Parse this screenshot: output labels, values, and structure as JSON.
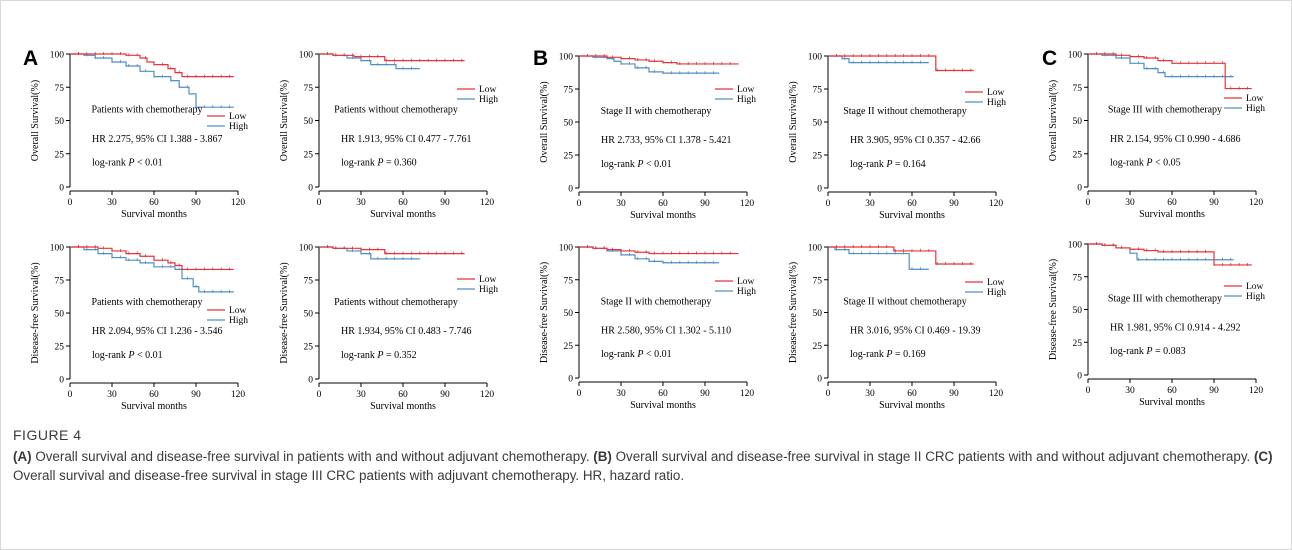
{
  "colors": {
    "low": "#e8333a",
    "high": "#4f8fc6",
    "axis": "#000000"
  },
  "panels": [
    {
      "letter": "A",
      "charts": [
        {
          "y_label": "Overall Survival(%)",
          "x_label": "Survival months",
          "subtitle": "Patients with chemotherapy",
          "hr": "HR 2.275, 95% CI 1.388 - 3.867",
          "p_prefix": "log-rank ",
          "p_text": " < 0.01",
          "xmax": 120,
          "series": [
            {
              "name": "Low",
              "points": [
                [
                  0,
                  100
                ],
                [
                  30,
                  100
                ],
                [
                  40,
                  99
                ],
                [
                  50,
                  97
                ],
                [
                  55,
                  94
                ],
                [
                  60,
                  92
                ],
                [
                  70,
                  89
                ],
                [
                  75,
                  86
                ],
                [
                  80,
                  83
                ],
                [
                  117,
                  83
                ]
              ]
            },
            {
              "name": "High",
              "points": [
                [
                  0,
                  100
                ],
                [
                  10,
                  99
                ],
                [
                  18,
                  97
                ],
                [
                  30,
                  94
                ],
                [
                  40,
                  91
                ],
                [
                  50,
                  87
                ],
                [
                  60,
                  83
                ],
                [
                  72,
                  80
                ],
                [
                  78,
                  75
                ],
                [
                  85,
                  70
                ],
                [
                  90,
                  60
                ],
                [
                  117,
                  60
                ]
              ]
            }
          ]
        },
        {
          "y_label": "Overall Survival(%)",
          "x_label": "Survival months",
          "subtitle": "Patients without chemotherapy",
          "hr": "HR 1.913, 95% CI 0.477 - 7.761",
          "p_prefix": "log-rank ",
          "p_text": " = 0.360",
          "xmax": 120,
          "series": [
            {
              "name": "Low",
              "points": [
                [
                  0,
                  100
                ],
                [
                  10,
                  99
                ],
                [
                  25,
                  98
                ],
                [
                  45,
                  98
                ],
                [
                  47,
                  95
                ],
                [
                  104,
                  95
                ]
              ]
            },
            {
              "name": "High",
              "points": [
                [
                  0,
                  100
                ],
                [
                  10,
                  99
                ],
                [
                  20,
                  97
                ],
                [
                  30,
                  95
                ],
                [
                  37,
                  92
                ],
                [
                  45,
                  92
                ],
                [
                  55,
                  89
                ],
                [
                  72,
                  89
                ]
              ]
            }
          ]
        },
        {
          "y_label": "Disease-free Survival(%)",
          "x_label": "Survival months",
          "subtitle": "Patients with chemotherapy",
          "hr": "HR 2.094, 95% CI 1.236 - 3.546",
          "p_prefix": "log-rank ",
          "p_text": " < 0.01",
          "xmax": 120,
          "series": [
            {
              "name": "Low",
              "points": [
                [
                  0,
                  100
                ],
                [
                  20,
                  99
                ],
                [
                  30,
                  97
                ],
                [
                  40,
                  95
                ],
                [
                  50,
                  93
                ],
                [
                  60,
                  90
                ],
                [
                  70,
                  88
                ],
                [
                  75,
                  86
                ],
                [
                  80,
                  83
                ],
                [
                  117,
                  83
                ]
              ]
            },
            {
              "name": "High",
              "points": [
                [
                  0,
                  100
                ],
                [
                  10,
                  98
                ],
                [
                  20,
                  95
                ],
                [
                  30,
                  92
                ],
                [
                  40,
                  90
                ],
                [
                  50,
                  88
                ],
                [
                  60,
                  85
                ],
                [
                  75,
                  83
                ],
                [
                  80,
                  76
                ],
                [
                  88,
                  70
                ],
                [
                  92,
                  66
                ],
                [
                  117,
                  66
                ]
              ]
            }
          ]
        },
        {
          "y_label": "Disease-free Survival(%)",
          "x_label": "Survival months",
          "subtitle": "Patients without chemotherapy",
          "hr": "HR 1.934, 95% CI 0.483 - 7.746",
          "p_prefix": "log-rank ",
          "p_text": " = 0.352",
          "xmax": 120,
          "series": [
            {
              "name": "Low",
              "points": [
                [
                  0,
                  100
                ],
                [
                  10,
                  99
                ],
                [
                  30,
                  98
                ],
                [
                  45,
                  98
                ],
                [
                  47,
                  95
                ],
                [
                  104,
                  95
                ]
              ]
            },
            {
              "name": "High",
              "points": [
                [
                  0,
                  100
                ],
                [
                  10,
                  99
                ],
                [
                  20,
                  97
                ],
                [
                  30,
                  95
                ],
                [
                  37,
                  91
                ],
                [
                  50,
                  91
                ],
                [
                  72,
                  91
                ]
              ]
            }
          ]
        }
      ]
    },
    {
      "letter": "B",
      "charts": [
        {
          "y_label": "Overall Survival(%)",
          "x_label": "Survival months",
          "subtitle": "Stage II with chemotherapy",
          "hr": "HR 2.733, 95% CI 1.378 - 5.421",
          "p_prefix": "log-rank ",
          "p_text": " < 0.01",
          "xmax": 120,
          "series": [
            {
              "name": "Low",
              "points": [
                [
                  0,
                  100
                ],
                [
                  10,
                  100
                ],
                [
                  20,
                  99
                ],
                [
                  30,
                  98
                ],
                [
                  40,
                  97
                ],
                [
                  50,
                  96
                ],
                [
                  60,
                  95
                ],
                [
                  70,
                  94
                ],
                [
                  114,
                  94
                ]
              ]
            },
            {
              "name": "High",
              "points": [
                [
                  0,
                  100
                ],
                [
                  10,
                  99
                ],
                [
                  20,
                  98
                ],
                [
                  25,
                  96
                ],
                [
                  30,
                  94
                ],
                [
                  40,
                  91
                ],
                [
                  50,
                  88
                ],
                [
                  60,
                  87
                ],
                [
                  100,
                  87
                ]
              ]
            }
          ]
        },
        {
          "y_label": "Overall Survival(%)",
          "x_label": "Survival months",
          "subtitle": "Stage II without chemotherapy",
          "hr": "HR 3.905, 95% CI 0.357 - 42.66",
          "p_prefix": "log-rank ",
          "p_text": " = 0.164",
          "xmax": 120,
          "series": [
            {
              "name": "Low",
              "points": [
                [
                  0,
                  100
                ],
                [
                  75,
                  100
                ],
                [
                  77,
                  89
                ],
                [
                  104,
                  89
                ]
              ]
            },
            {
              "name": "High",
              "points": [
                [
                  0,
                  100
                ],
                [
                  10,
                  98
                ],
                [
                  15,
                  95
                ],
                [
                  72,
                  95
                ]
              ]
            }
          ]
        },
        {
          "y_label": "Disease-free Survival(%)",
          "x_label": "Survival months",
          "subtitle": "Stage II with chemotherapy",
          "hr": "HR 2.580, 95% CI 1.302 - 5.110",
          "p_prefix": "log-rank ",
          "p_text": " < 0.01",
          "xmax": 120,
          "series": [
            {
              "name": "Low",
              "points": [
                [
                  0,
                  100
                ],
                [
                  10,
                  99
                ],
                [
                  20,
                  98
                ],
                [
                  30,
                  97
                ],
                [
                  40,
                  96
                ],
                [
                  50,
                  95
                ],
                [
                  60,
                  95
                ],
                [
                  114,
                  95
                ]
              ]
            },
            {
              "name": "High",
              "points": [
                [
                  0,
                  100
                ],
                [
                  10,
                  99
                ],
                [
                  20,
                  97
                ],
                [
                  30,
                  94
                ],
                [
                  40,
                  91
                ],
                [
                  50,
                  89
                ],
                [
                  60,
                  88
                ],
                [
                  100,
                  88
                ]
              ]
            }
          ]
        },
        {
          "y_label": "Disease-free Survival(%)",
          "x_label": "Survival months",
          "subtitle": "Stage II without chemotherapy",
          "hr": "HR 3.016, 95% CI 0.469 - 19.39",
          "p_prefix": "log-rank ",
          "p_text": " = 0.169",
          "xmax": 120,
          "series": [
            {
              "name": "Low",
              "points": [
                [
                  0,
                  100
                ],
                [
                  45,
                  100
                ],
                [
                  47,
                  97
                ],
                [
                  75,
                  97
                ],
                [
                  77,
                  87
                ],
                [
                  104,
                  87
                ]
              ]
            },
            {
              "name": "High",
              "points": [
                [
                  0,
                  100
                ],
                [
                  5,
                  98
                ],
                [
                  15,
                  95
                ],
                [
                  55,
                  95
                ],
                [
                  58,
                  83
                ],
                [
                  72,
                  83
                ]
              ]
            }
          ]
        }
      ]
    },
    {
      "letter": "C",
      "charts": [
        {
          "y_label": "Overall Survival(%)",
          "x_label": "Survival months",
          "subtitle": "Stage III with chemotherapy",
          "hr": "HR 2.154, 95% CI 0.990 - 4.686",
          "p_prefix": "log-rank ",
          "p_text": " < 0.05",
          "xmax": 120,
          "series": [
            {
              "name": "Low",
              "points": [
                [
                  0,
                  100
                ],
                [
                  20,
                  99
                ],
                [
                  30,
                  98
                ],
                [
                  40,
                  97
                ],
                [
                  50,
                  95
                ],
                [
                  60,
                  93
                ],
                [
                  96,
                  93
                ],
                [
                  98,
                  74
                ],
                [
                  117,
                  74
                ]
              ]
            },
            {
              "name": "High",
              "points": [
                [
                  0,
                  100
                ],
                [
                  10,
                  99
                ],
                [
                  20,
                  97
                ],
                [
                  30,
                  93
                ],
                [
                  40,
                  89
                ],
                [
                  50,
                  86
                ],
                [
                  55,
                  83
                ],
                [
                  104,
                  83
                ]
              ]
            }
          ]
        },
        {
          "y_label": "Disease-free Survival(%)",
          "x_label": "Survival months",
          "subtitle": "Stage III with chemotherapy",
          "hr": "HR 1.981, 95% CI 0.914 - 4.292",
          "p_prefix": "log-rank ",
          "p_text": " = 0.083",
          "xmax": 120,
          "series": [
            {
              "name": "Low",
              "points": [
                [
                  0,
                  100
                ],
                [
                  10,
                  99
                ],
                [
                  20,
                  97
                ],
                [
                  30,
                  96
                ],
                [
                  40,
                  95
                ],
                [
                  50,
                  94
                ],
                [
                  88,
                  94
                ],
                [
                  90,
                  84
                ],
                [
                  117,
                  84
                ]
              ]
            },
            {
              "name": "High",
              "points": [
                [
                  0,
                  100
                ],
                [
                  10,
                  99
                ],
                [
                  20,
                  97
                ],
                [
                  30,
                  93
                ],
                [
                  35,
                  88
                ],
                [
                  104,
                  88
                ]
              ]
            }
          ]
        }
      ]
    }
  ],
  "y_ticks": [
    "0",
    "25",
    "50",
    "75",
    "100"
  ],
  "x_ticks": [
    "0",
    "30",
    "60",
    "90",
    "120"
  ],
  "caption": {
    "label": "FIGURE 4",
    "a_tag": "(A)",
    "a_text": " Overall survival and disease-free survival in patients with and without adjuvant chemotherapy. ",
    "b_tag": "(B)",
    "b_text": " Overall survival and disease-free survival in stage II CRC patients with and without adjuvant chemotherapy. ",
    "c_tag": "(C)",
    "c_text": " Overall survival and disease-free survival in stage III CRC patients with adjuvant chemotherapy. HR, hazard ratio."
  }
}
